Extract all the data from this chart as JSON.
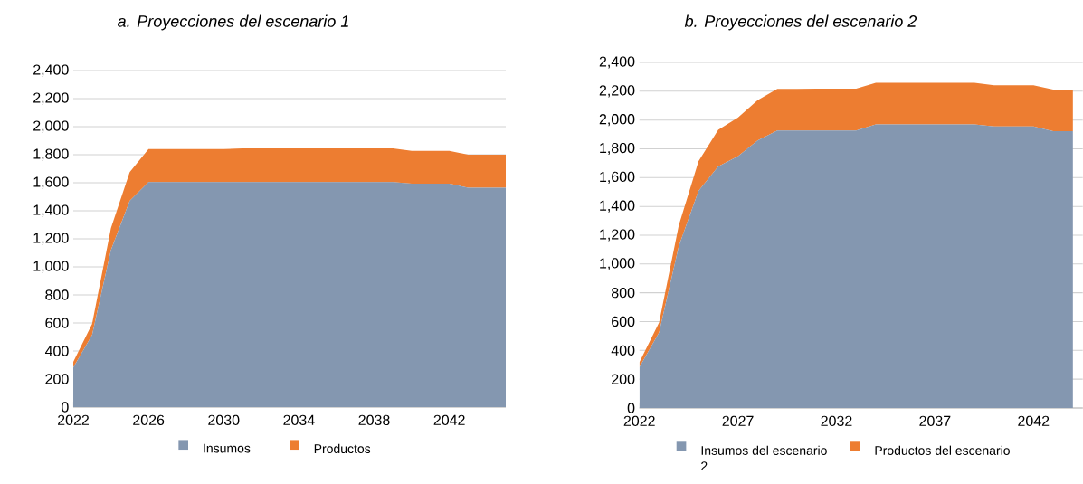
{
  "chart_data": [
    {
      "type": "area",
      "title": "a.    Proyecciones del escenario 1",
      "stacked": true,
      "grid": "y",
      "legend": "bottom",
      "x": [
        2022,
        2023,
        2024,
        2025,
        2026,
        2027,
        2028,
        2029,
        2030,
        2031,
        2032,
        2033,
        2034,
        2035,
        2036,
        2037,
        2038,
        2039,
        2040,
        2041,
        2042,
        2043,
        2044,
        2045
      ],
      "xlim": [
        2022,
        2045
      ],
      "xticks": [
        2022,
        2026,
        2030,
        2034,
        2038,
        2042
      ],
      "ylim": [
        0,
        2400
      ],
      "yticks": [
        0,
        200,
        400,
        600,
        800,
        {
          "value": 1000,
          "label": "1,000"
        },
        {
          "value": 1200,
          "label": "1,200"
        },
        {
          "value": 1400,
          "label": "1,400"
        },
        {
          "value": 1600,
          "label": "1,600"
        },
        {
          "value": 1800,
          "label": "1,800"
        },
        {
          "value": 2000,
          "label": "2,000"
        },
        {
          "value": 2200,
          "label": "2,200"
        },
        {
          "value": 2400,
          "label": "2,400"
        }
      ],
      "series": [
        {
          "name": "Insumos",
          "color": "#8497b0",
          "values": [
            282,
            514,
            1120,
            1471,
            1605,
            1605,
            1605,
            1605,
            1605,
            1605,
            1605,
            1605,
            1605,
            1605,
            1605,
            1605,
            1605,
            1605,
            1593,
            1593,
            1593,
            1565,
            1565,
            1565
          ]
        },
        {
          "name": "Productos",
          "color": "#ed7d31",
          "values": [
            40,
            80,
            155,
            205,
            235,
            235,
            235,
            235,
            235,
            240,
            240,
            240,
            240,
            240,
            240,
            240,
            240,
            240,
            235,
            235,
            235,
            235,
            235,
            235
          ]
        }
      ]
    },
    {
      "type": "area",
      "title": "b.    Proyecciones del escenario 2",
      "stacked": true,
      "grid": "y",
      "legend": "bottom",
      "x": [
        2022,
        2023,
        2024,
        2025,
        2026,
        2027,
        2028,
        2029,
        2030,
        2031,
        2032,
        2033,
        2034,
        2035,
        2036,
        2037,
        2038,
        2039,
        2040,
        2041,
        2042,
        2043,
        2044
      ],
      "xlim": [
        2022,
        2044.5
      ],
      "xticks": [
        2022,
        2027,
        2032,
        2037,
        2042
      ],
      "ylim": [
        0,
        2400
      ],
      "yticks": [
        0,
        200,
        400,
        600,
        800,
        {
          "value": 1000,
          "label": "1,000"
        },
        {
          "value": 1200,
          "label": "1,200"
        },
        {
          "value": 1400,
          "label": "1,400"
        },
        {
          "value": 1600,
          "label": "1,600"
        },
        {
          "value": 1800,
          "label": "1,800"
        },
        {
          "value": 2000,
          "label": "2,000"
        },
        {
          "value": 2200,
          "label": "2,200"
        },
        {
          "value": 2400,
          "label": "2,400"
        }
      ],
      "series": [
        {
          "name": "Insumos del escenario 2",
          "color": "#8497b0",
          "values": [
            282,
            524,
            1124,
            1508,
            1678,
            1748,
            1858,
            1927,
            1927,
            1927,
            1927,
            1927,
            1969,
            1969,
            1969,
            1969,
            1969,
            1969,
            1955,
            1955,
            1955,
            1923,
            1923
          ]
        },
        {
          "name": "Productos del escenario",
          "color": "#ed7d31",
          "values": [
            35,
            70,
            145,
            205,
            254,
            268,
            279,
            289,
            289,
            291,
            291,
            291,
            289,
            289,
            289,
            289,
            289,
            289,
            287,
            287,
            287,
            288,
            288
          ]
        }
      ]
    }
  ]
}
